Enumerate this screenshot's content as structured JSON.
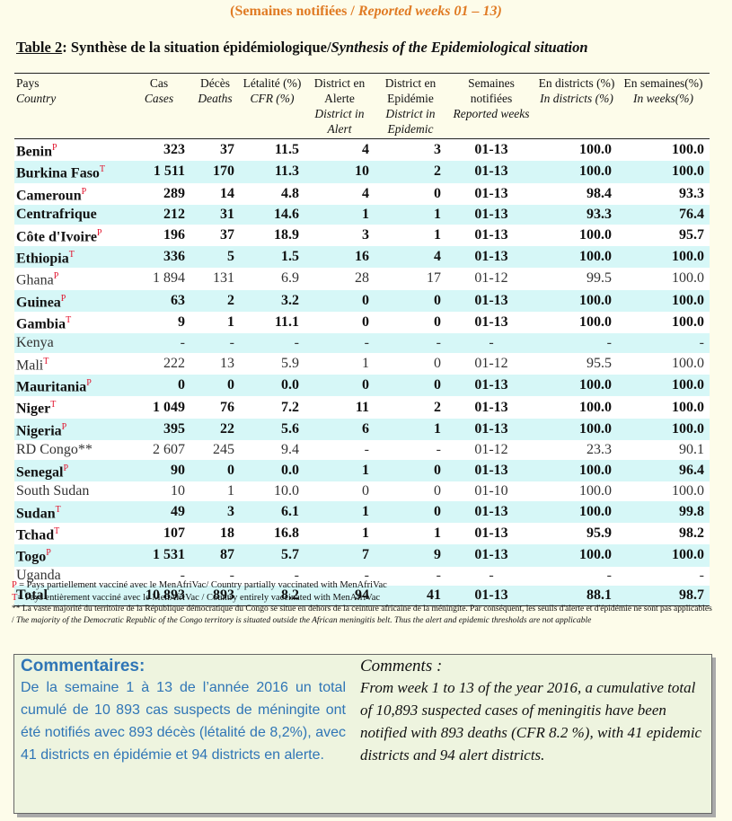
{
  "header": {
    "fr": "(Semaines notifiées / ",
    "en": "Reported weeks 01 – 13)"
  },
  "table": {
    "label": "Table 2",
    "title_fr": ": Synthèse de la situation épidémiologique/",
    "title_en": "Synthesis of the Epidemiological situation",
    "columns": [
      {
        "fr": "Pays",
        "en": "Country"
      },
      {
        "fr": "Cas",
        "en": "Cases"
      },
      {
        "fr": "Décès",
        "en": "Deaths"
      },
      {
        "fr": "Létalité (%)",
        "en": "CFR (%)"
      },
      {
        "fr": "District en Alerte",
        "en": "District in Alert"
      },
      {
        "fr": "District en Epidémie",
        "en": "District in Epidemic"
      },
      {
        "fr": "Semaines notifiées",
        "en": "Reported weeks"
      },
      {
        "fr": "En districts (%)",
        "en": "In districts (%)"
      },
      {
        "fr": "En semaines(%)",
        "en": "In weeks(%)"
      }
    ],
    "rows": [
      {
        "country": "Benin",
        "sup": "P",
        "bold": true,
        "cells": [
          "323",
          "37",
          "11.5",
          "4",
          "3",
          "01-13",
          "100.0",
          "100.0"
        ]
      },
      {
        "country": "Burkina Faso",
        "sup": "T",
        "bold": true,
        "cells": [
          "1 511",
          "170",
          "11.3",
          "10",
          "2",
          "01-13",
          "100.0",
          "100.0"
        ]
      },
      {
        "country": "Cameroun",
        "sup": "P",
        "bold": true,
        "cells": [
          "289",
          "14",
          "4.8",
          "4",
          "0",
          "01-13",
          "98.4",
          "93.3"
        ]
      },
      {
        "country": "Centrafrique",
        "bold": true,
        "cells": [
          "212",
          "31",
          "14.6",
          "1",
          "1",
          "01-13",
          "93.3",
          "76.4"
        ]
      },
      {
        "country": "Côte d'Ivoire",
        "sup": "P",
        "bold": true,
        "cells": [
          "196",
          "37",
          "18.9",
          "3",
          "1",
          "01-13",
          "100.0",
          "95.7"
        ]
      },
      {
        "country": "Ethiopia",
        "sup": "T",
        "bold": true,
        "cells": [
          "336",
          "5",
          "1.5",
          "16",
          "4",
          "01-13",
          "100.0",
          "100.0"
        ]
      },
      {
        "country": "Ghana",
        "sup": "P",
        "bold": false,
        "cells": [
          "1 894",
          "131",
          "6.9",
          "28",
          "17",
          "01-12",
          "99.5",
          "100.0"
        ]
      },
      {
        "country": "Guinea",
        "sup": "P",
        "bold": true,
        "cells": [
          "63",
          "2",
          "3.2",
          "0",
          "0",
          "01-13",
          "100.0",
          "100.0"
        ]
      },
      {
        "country": "Gambia",
        "sup": "T",
        "bold": true,
        "cells": [
          "9",
          "1",
          "11.1",
          "0",
          "0",
          "01-13",
          "100.0",
          "100.0"
        ]
      },
      {
        "country": "Kenya",
        "bold": false,
        "cells": [
          "-",
          "-",
          "-",
          "-",
          "-",
          "-",
          "-",
          "-"
        ]
      },
      {
        "country": "Mali",
        "sup": "T",
        "bold": false,
        "cells": [
          "222",
          "13",
          "5.9",
          "1",
          "0",
          "01-12",
          "95.5",
          "100.0"
        ]
      },
      {
        "country": "Mauritania",
        "sup": "P",
        "bold": true,
        "cells": [
          "0",
          "0",
          "0.0",
          "0",
          "0",
          "01-13",
          "100.0",
          "100.0"
        ]
      },
      {
        "country": "Niger",
        "sup": "T",
        "bold": true,
        "cells": [
          "1 049",
          "76",
          "7.2",
          "11",
          "2",
          "01-13",
          "100.0",
          "100.0"
        ]
      },
      {
        "country": "Nigeria",
        "sup": "P",
        "bold": true,
        "cells": [
          "395",
          "22",
          "5.6",
          "6",
          "1",
          "01-13",
          "100.0",
          "100.0"
        ]
      },
      {
        "country": "RD Congo**",
        "bold": false,
        "cells": [
          "2 607",
          "245",
          "9.4",
          "-",
          "-",
          "01-12",
          "23.3",
          "90.1"
        ]
      },
      {
        "country": "Senegal",
        "sup": "P",
        "bold": true,
        "cells": [
          "90",
          "0",
          "0.0",
          "1",
          "0",
          "01-13",
          "100.0",
          "96.4"
        ]
      },
      {
        "country": "South Sudan",
        "bold": false,
        "cells": [
          "10",
          "1",
          "10.0",
          "0",
          "0",
          "01-10",
          "100.0",
          "100.0"
        ]
      },
      {
        "country": "Sudan",
        "sup": "T",
        "bold": true,
        "cells": [
          "49",
          "3",
          "6.1",
          "1",
          "0",
          "01-13",
          "100.0",
          "99.8"
        ]
      },
      {
        "country": "Tchad",
        "sup": "T",
        "bold": true,
        "cells": [
          "107",
          "18",
          "16.8",
          "1",
          "1",
          "01-13",
          "95.9",
          "98.2"
        ]
      },
      {
        "country": "Togo",
        "sup": "P",
        "bold": true,
        "cells": [
          "1 531",
          "87",
          "5.7",
          "7",
          "9",
          "01-13",
          "100.0",
          "100.0"
        ]
      },
      {
        "country": "Uganda",
        "bold": false,
        "cells": [
          "-",
          "-",
          "-",
          "-",
          "-",
          "-",
          "-",
          "-"
        ]
      },
      {
        "country": "Total",
        "bold": true,
        "cells": [
          "10 893",
          "893",
          "8.2",
          "94",
          "41",
          "01-13",
          "88.1",
          "98.7"
        ]
      }
    ]
  },
  "notes": [
    {
      "mark": "P",
      "text": " = Pays partiellement vacciné avec le MenAfriVac/ Country partially  vaccinated with MenAfriVac"
    },
    {
      "mark": "T",
      "text": "= Pays entièrement vacciné avec le MenAfriVac / Country entirely  vaccinated with MenAfriVac"
    },
    {
      "mark": "**",
      "text_fr": " La vaste majorité du territoire de la République démocratique du Congo se situe en dehors de la ceinture africaine de la méningite. Par conséquent, les seuils d'alerte et d'épidémie ne sont pas applicables /",
      "text_en": "The majority of the Democratic Republic of the Congo territory is situated outside the African meningitis belt. Thus the alert and epidemic thresholds are not applicable"
    }
  ],
  "comments": {
    "fr_title": "Commentaires:",
    "fr_body": "De la semaine 1 à 13 de l’année 2016 un total cumulé de 10 893 cas suspects de méningite ont été notifiés avec 893 décès (létalité de 8,2%), avec 41 districts en épidémie et 94 districts en alerte.",
    "en_title": "Comments :",
    "en_body": "From week 1 to 13 of the year 2016, a cumulative total of 10,893 suspected cases of meningitis have been notified with 893 deaths (CFR 8.2 %), with 41 epidemic districts and 94 alert districts."
  }
}
